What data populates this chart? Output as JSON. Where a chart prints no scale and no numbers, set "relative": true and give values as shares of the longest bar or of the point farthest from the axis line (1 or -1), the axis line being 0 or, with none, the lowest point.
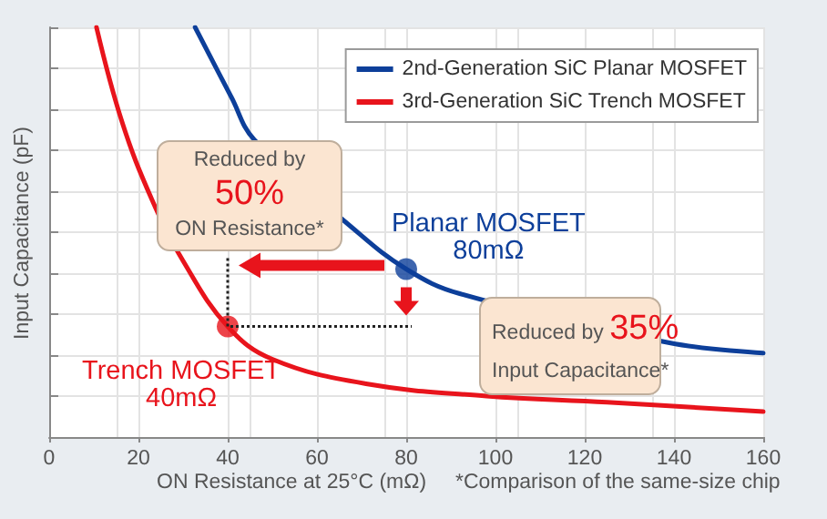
{
  "chart_data": {
    "type": "line",
    "relative": true,
    "xlabel": "ON Resistance at 25°C (mΩ)",
    "ylabel": "Input Capacitance (pF)",
    "xlim": [
      0,
      160
    ],
    "xticks": [
      0,
      20,
      40,
      60,
      80,
      100,
      120,
      140,
      160
    ],
    "grid": true,
    "legend": "top right",
    "marker": "none",
    "line_style": "solid",
    "series": [
      {
        "name": "2nd-Generation SiC Planar MOSFET",
        "color": "#0d3f9a",
        "x": [
          32.7,
          40.8,
          46,
          68,
          80,
          92,
          139,
          160
        ],
        "values": [
          1.0,
          0.83,
          0.725,
          0.51,
          0.41,
          0.35,
          0.23,
          0.205
        ]
      },
      {
        "name": "3rd-Generation SiC Trench MOSFET",
        "color": "#e8141c",
        "x": [
          10.6,
          16.3,
          23,
          30,
          40,
          50,
          71,
          98,
          125,
          160
        ],
        "values": [
          1.0,
          0.77,
          0.58,
          0.43,
          0.27,
          0.19,
          0.13,
          0.1,
          0.085,
          0.062
        ]
      },
      {
        "type": "scatter",
        "marker": "circle",
        "color": "#0d3f9a",
        "x": [
          80
        ],
        "values": [
          0.41
        ]
      },
      {
        "type": "scatter",
        "marker": "circle",
        "color": "#e8141c",
        "x": [
          40
        ],
        "values": [
          0.27
        ]
      }
    ],
    "annotations": [
      {
        "text": "Planar MOSFET\n80mΩ",
        "x": 80,
        "y": 0.41
      },
      {
        "text": "Trench MOSFET\n40mΩ",
        "x": 40,
        "y": 0.27
      },
      "Reduced by\n50%\nON Resistance*",
      "Reduced by 35%\nInput Capacitance*",
      "*Comparison of the same-size chip"
    ]
  }
}
